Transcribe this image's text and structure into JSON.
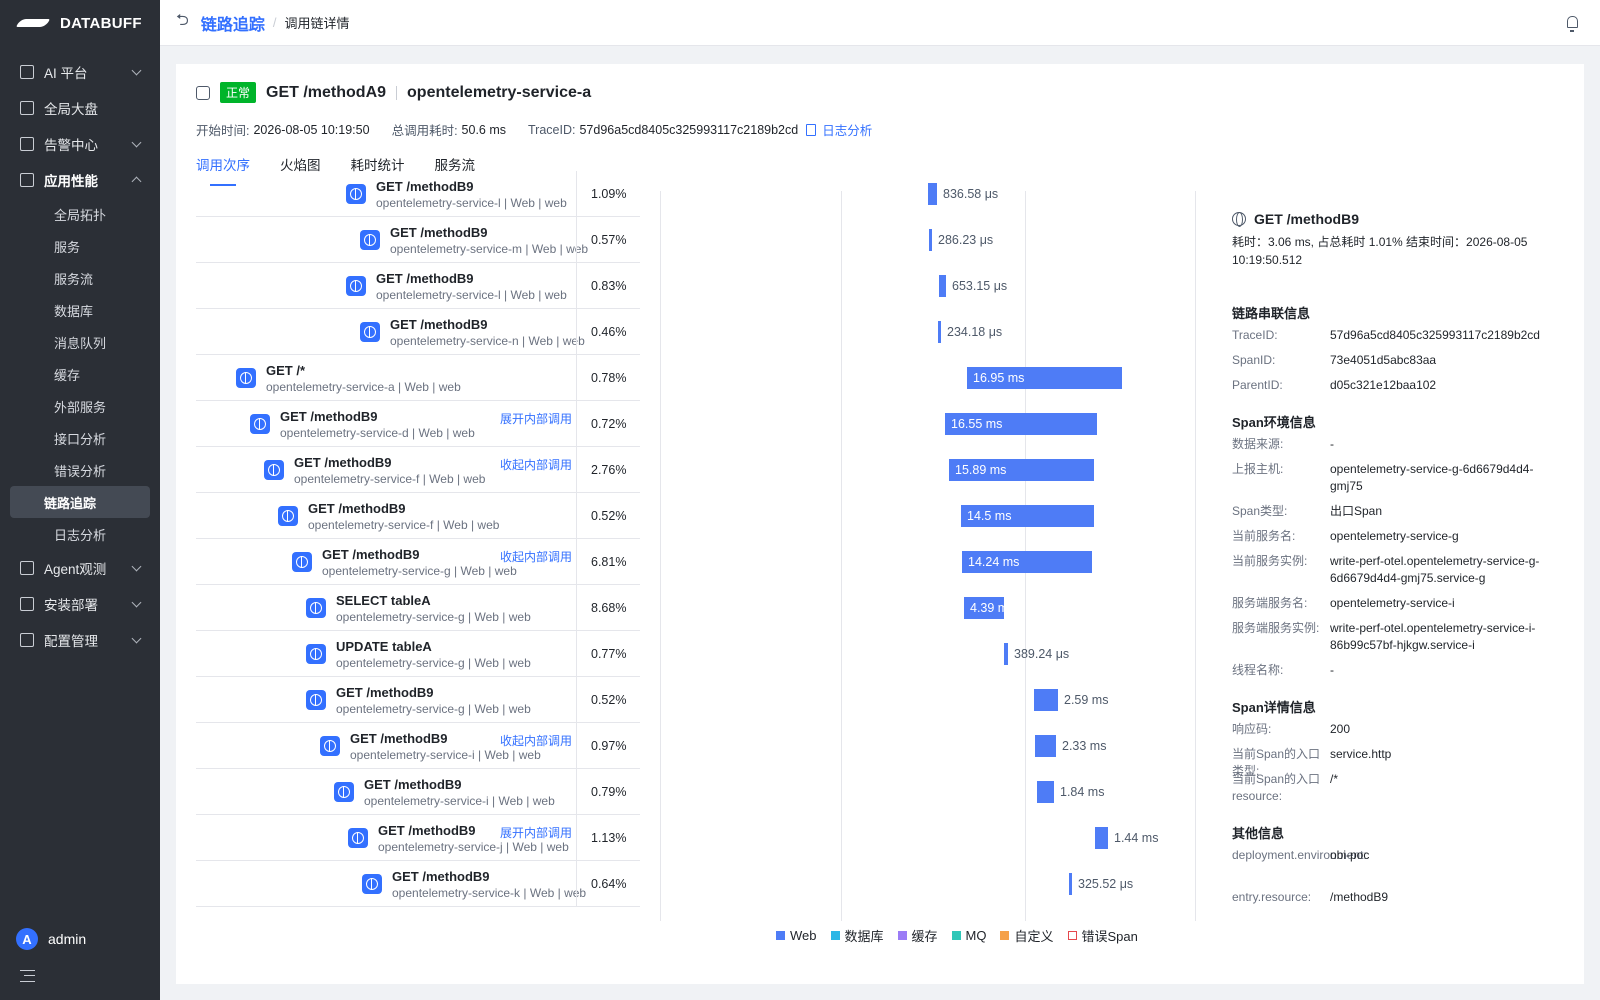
{
  "brand": "DATABUFF",
  "sidebar": {
    "groups_top": [
      {
        "label": "AI 平台",
        "icon": "chart-icon",
        "expandable": true
      },
      {
        "label": "全局大盘",
        "icon": "dashboard-icon",
        "expandable": false
      },
      {
        "label": "告警中心",
        "icon": "alert-icon",
        "expandable": true
      }
    ],
    "app_perf": {
      "label": "应用性能",
      "icon": "list-icon"
    },
    "sub_items": [
      "全局拓扑",
      "服务",
      "服务流",
      "数据库",
      "消息队列",
      "缓存",
      "外部服务",
      "接口分析",
      "错误分析",
      "链路追踪",
      "日志分析"
    ],
    "active_sub": "链路追踪",
    "groups_bottom": [
      {
        "label": "Agent观测",
        "icon": "cube-icon"
      },
      {
        "label": "安装部署",
        "icon": "deploy-icon"
      },
      {
        "label": "配置管理",
        "icon": "config-icon"
      }
    ],
    "user": {
      "initial": "A",
      "name": "admin"
    }
  },
  "header": {
    "crumb_parent": "链路追踪",
    "crumb_current": "调用链详情"
  },
  "trace": {
    "status": "正常",
    "method": "GET /methodA9",
    "service": "opentelemetry-service-a",
    "start_label": "开始时间:",
    "start_value": "2026-08-05 10:19:50",
    "duration_label": "总调用耗时:",
    "duration_value": "50.6 ms",
    "traceid_label": "TraceID:",
    "traceid_value": "57d96a5cd8405c325993117c2189b2cd",
    "log_link": "日志分析"
  },
  "tabs": [
    "调用次序",
    "火焰图",
    "耗时统计",
    "服务流"
  ],
  "active_tab": "调用次序",
  "spans": [
    {
      "name": "GET /methodB9",
      "service": "opentelemetry-service-l  |  Web  |  web",
      "pct": "1.09%",
      "indent": 150,
      "action": "",
      "bar": {
        "label": "836.58 μs",
        "inside": false,
        "start": 0.498,
        "width": 0.016
      }
    },
    {
      "name": "GET /methodB9",
      "service": "opentelemetry-service-m  |  Web  |  web",
      "pct": "0.57%",
      "indent": 164,
      "action": "",
      "bar": {
        "label": "286.23 μs",
        "inside": false,
        "start": 0.5,
        "width": 0.006
      }
    },
    {
      "name": "GET /methodB9",
      "service": "opentelemetry-service-l  |  Web  |  web",
      "pct": "0.83%",
      "indent": 150,
      "action": "",
      "bar": {
        "label": "653.15 μs",
        "inside": false,
        "start": 0.518,
        "width": 0.013
      }
    },
    {
      "name": "GET /methodB9",
      "service": "opentelemetry-service-n  |  Web  |  web",
      "pct": "0.46%",
      "indent": 164,
      "action": "",
      "bar": {
        "label": "234.18 μs",
        "inside": false,
        "start": 0.516,
        "width": 0.005
      }
    },
    {
      "name": "GET /*",
      "service": "opentelemetry-service-a  |  Web  |  web",
      "pct": "0.78%",
      "indent": 40,
      "action": "",
      "bar": {
        "label": "16.95 ms",
        "inside": true,
        "start": 0.57,
        "width": 0.29
      }
    },
    {
      "name": "GET /methodB9",
      "service": "opentelemetry-service-d  |  Web  |  web",
      "pct": "0.72%",
      "indent": 54,
      "action": "展开内部调用",
      "bar": {
        "label": "16.55 ms",
        "inside": true,
        "start": 0.53,
        "width": 0.283
      }
    },
    {
      "name": "GET /methodB9",
      "service": "opentelemetry-service-f  |  Web  |  web",
      "pct": "2.76%",
      "indent": 68,
      "action": "收起内部调用",
      "bar": {
        "label": "15.89 ms",
        "inside": true,
        "start": 0.538,
        "width": 0.271
      }
    },
    {
      "name": "GET /methodB9",
      "service": "opentelemetry-service-f  |  Web  |  web",
      "pct": "0.52%",
      "indent": 82,
      "action": "",
      "bar": {
        "label": "14.5 ms",
        "inside": true,
        "start": 0.56,
        "width": 0.248
      }
    },
    {
      "name": "GET /methodB9",
      "service": "opentelemetry-service-g  |  Web  |  web",
      "pct": "6.81%",
      "indent": 96,
      "action": "收起内部调用",
      "bar": {
        "label": "14.24 ms",
        "inside": true,
        "start": 0.562,
        "width": 0.243
      }
    },
    {
      "name": "SELECT tableA",
      "service": "opentelemetry-service-g  |  Web  |  web",
      "pct": "8.68%",
      "indent": 110,
      "action": "",
      "bar": {
        "label": "4.39 ms",
        "inside": true,
        "start": 0.566,
        "width": 0.075
      }
    },
    {
      "name": "UPDATE tableA",
      "service": "opentelemetry-service-g  |  Web  |  web",
      "pct": "0.77%",
      "indent": 110,
      "action": "",
      "bar": {
        "label": "389.24 μs",
        "inside": false,
        "start": 0.639,
        "width": 0.007
      }
    },
    {
      "name": "GET /methodB9",
      "service": "opentelemetry-service-g  |  Web  |  web",
      "pct": "0.52%",
      "indent": 110,
      "action": "",
      "bar": {
        "label": "2.59 ms",
        "inside": false,
        "start": 0.696,
        "width": 0.044
      }
    },
    {
      "name": "GET /methodB9",
      "service": "opentelemetry-service-i  |  Web  |  web",
      "pct": "0.97%",
      "indent": 124,
      "action": "收起内部调用",
      "bar": {
        "label": "2.33 ms",
        "inside": false,
        "start": 0.698,
        "width": 0.04
      }
    },
    {
      "name": "GET /methodB9",
      "service": "opentelemetry-service-i  |  Web  |  web",
      "pct": "0.79%",
      "indent": 138,
      "action": "",
      "bar": {
        "label": "1.84 ms",
        "inside": false,
        "start": 0.702,
        "width": 0.031
      }
    },
    {
      "name": "GET /methodB9",
      "service": "opentelemetry-service-j  |  Web  |  web",
      "pct": "1.13%",
      "indent": 152,
      "action": "展开内部调用",
      "bar": {
        "label": "1.44 ms",
        "inside": false,
        "start": 0.81,
        "width": 0.024
      }
    },
    {
      "name": "GET /methodB9",
      "service": "opentelemetry-service-k  |  Web  |  web",
      "pct": "0.64%",
      "indent": 166,
      "action": "",
      "bar": {
        "label": "325.52 μs",
        "inside": false,
        "start": 0.762,
        "width": 0.006
      }
    }
  ],
  "legend": [
    {
      "label": "Web",
      "color": "#4e7cf6",
      "outline": false
    },
    {
      "label": "数据库",
      "color": "#2bb6e6",
      "outline": false
    },
    {
      "label": "缓存",
      "color": "#9b7cf6",
      "outline": false
    },
    {
      "label": "MQ",
      "color": "#2fc7b8",
      "outline": false
    },
    {
      "label": "自定义",
      "color": "#f5a14a",
      "outline": false
    },
    {
      "label": "错误Span",
      "color": "#e5484d",
      "outline": true
    }
  ],
  "detail": {
    "title": "GET /methodB9",
    "meta": "耗时：3.06 ms, 占总耗时 1.01%   结束时间：2026-08-05 10:19:50.512",
    "sections": [
      {
        "title": "链路串联信息",
        "rows": [
          {
            "k": "TraceID:",
            "v": "57d96a5cd8405c325993117c2189b2cd"
          },
          {
            "k": "SpanID:",
            "v": "73e4051d5abc83aa"
          },
          {
            "k": "ParentID:",
            "v": "d05c321e12baa102"
          }
        ]
      },
      {
        "title": "Span环境信息",
        "rows": [
          {
            "k": "数据来源:",
            "v": "-"
          },
          {
            "k": "上报主机:",
            "v": "opentelemetry-service-g-6d6679d4d4-gmj75"
          },
          {
            "k": "Span类型:",
            "v": "出口Span"
          },
          {
            "k": "当前服务名:",
            "v": "opentelemetry-service-g"
          },
          {
            "k": "当前服务实例:",
            "v": "write-perf-otel.opentelemetry-service-g-6d6679d4d4-gmj75.service-g"
          },
          {
            "k": "服务端服务名:",
            "v": "opentelemetry-service-i"
          },
          {
            "k": "服务端服务实例:",
            "v": "write-perf-otel.opentelemetry-service-i-86b99c57bf-hjkgw.service-i"
          },
          {
            "k": "线程名称:",
            "v": "-"
          }
        ]
      },
      {
        "title": "Span详情信息",
        "rows": [
          {
            "k": "响应码:",
            "v": "200"
          },
          {
            "k": "当前Span的入口类型:",
            "v": "service.http"
          },
          {
            "k": "当前Span的入口resource:",
            "v": "/*"
          }
        ]
      },
      {
        "title": "其他信息",
        "rows": [
          {
            "k": "deployment.environment:",
            "v": "obi-poc"
          },
          {
            "k": "entry.resource:",
            "v": "/methodB9"
          }
        ]
      }
    ]
  }
}
